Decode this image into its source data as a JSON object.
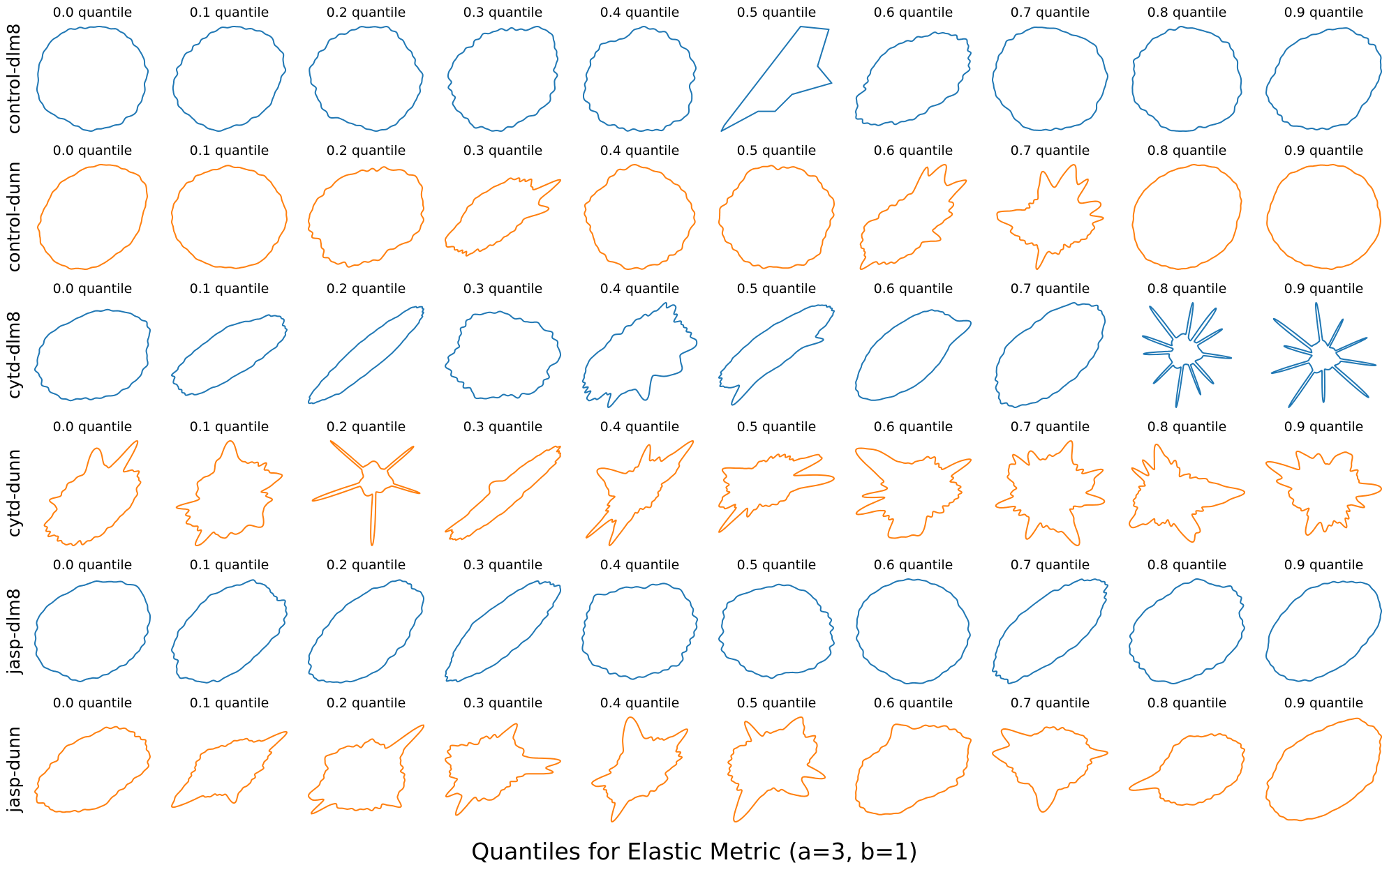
{
  "figure": {
    "title": "Quantiles for Elastic Metric (a=3, b=1)"
  },
  "chart_data": {
    "type": "grid",
    "title": "Quantiles for Elastic Metric (a=3, b=1)",
    "quantile_labels": [
      "0.0 quantile",
      "0.1 quantile",
      "0.2 quantile",
      "0.3 quantile",
      "0.4 quantile",
      "0.5 quantile",
      "0.6 quantile",
      "0.7 quantile",
      "0.8 quantile",
      "0.9 quantile"
    ],
    "quantiles": [
      0.0,
      0.1,
      0.2,
      0.3,
      0.4,
      0.5,
      0.6,
      0.7,
      0.8,
      0.9
    ],
    "colors": {
      "dlm8": "#1f77b4",
      "dunn": "#ff7f0e"
    },
    "rows": [
      {
        "label": "control-dlm8",
        "color": "#1f77b4",
        "shapes": [
          {
            "kind": "blob",
            "elong": 0.02,
            "angle": 0,
            "rough": 0.05,
            "spikes": 0
          },
          {
            "kind": "blob",
            "elong": 0.1,
            "angle": 40,
            "rough": 0.06,
            "spikes": 0
          },
          {
            "kind": "blob",
            "elong": 0.05,
            "angle": 0,
            "rough": 0.07,
            "spikes": 0
          },
          {
            "kind": "blob",
            "elong": 0.15,
            "angle": 35,
            "rough": 0.09,
            "spikes": 0
          },
          {
            "kind": "blob",
            "elong": 0.05,
            "angle": 0,
            "rough": 0.09,
            "spikes": 0
          },
          {
            "kind": "poly",
            "points": [
              [
                0.45,
                -0.9
              ],
              [
                0.95,
                -0.85
              ],
              [
                0.75,
                -0.2
              ],
              [
                1.0,
                0.1
              ],
              [
                0.3,
                0.3
              ],
              [
                0.0,
                0.6
              ],
              [
                -0.3,
                0.6
              ],
              [
                -0.95,
                0.95
              ],
              [
                -0.9,
                0.85
              ]
            ]
          },
          {
            "kind": "blob",
            "elong": 0.3,
            "angle": 35,
            "rough": 0.1,
            "spikes": 0
          },
          {
            "kind": "blob",
            "elong": 0.05,
            "angle": 0,
            "rough": 0.05,
            "spikes": 0
          },
          {
            "kind": "blob",
            "elong": 0.05,
            "angle": 0,
            "rough": 0.06,
            "spikes": 0
          },
          {
            "kind": "blob",
            "elong": 0.15,
            "angle": 30,
            "rough": 0.06,
            "spikes": 0
          }
        ]
      },
      {
        "label": "control-dunn",
        "color": "#ff7f0e",
        "shapes": [
          {
            "kind": "blob",
            "elong": 0.15,
            "angle": 40,
            "rough": 0.04,
            "spikes": 0
          },
          {
            "kind": "blob",
            "elong": 0.05,
            "angle": 0,
            "rough": 0.04,
            "spikes": 0
          },
          {
            "kind": "blob",
            "elong": 0.15,
            "angle": 30,
            "rough": 0.09,
            "spikes": 0
          },
          {
            "kind": "blob",
            "elong": 0.45,
            "angle": 40,
            "rough": 0.12,
            "spikes": 3
          },
          {
            "kind": "blob",
            "elong": 0.05,
            "angle": 0,
            "rough": 0.07,
            "spikes": 0
          },
          {
            "kind": "blob",
            "elong": 0.05,
            "angle": 0,
            "rough": 0.08,
            "spikes": 0
          },
          {
            "kind": "blob",
            "elong": 0.4,
            "angle": 35,
            "rough": 0.14,
            "spikes": 5
          },
          {
            "kind": "blob",
            "elong": 0.1,
            "angle": 10,
            "rough": 0.18,
            "spikes": 9
          },
          {
            "kind": "blob",
            "elong": 0.1,
            "angle": 40,
            "rough": 0.03,
            "spikes": 0
          },
          {
            "kind": "blob",
            "elong": 0.05,
            "angle": 0,
            "rough": 0.03,
            "spikes": 0
          }
        ]
      },
      {
        "label": "cytd-dlm8",
        "color": "#1f77b4",
        "shapes": [
          {
            "kind": "blob",
            "elong": 0.2,
            "angle": 20,
            "rough": 0.06,
            "spikes": 0
          },
          {
            "kind": "blob",
            "elong": 0.55,
            "angle": 30,
            "rough": 0.07,
            "spikes": 0
          },
          {
            "kind": "blob",
            "elong": 0.8,
            "angle": 40,
            "rough": 0.06,
            "spikes": 0
          },
          {
            "kind": "blob",
            "elong": 0.1,
            "angle": 10,
            "rough": 0.12,
            "spikes": 0
          },
          {
            "kind": "blob",
            "elong": 0.45,
            "angle": 40,
            "rough": 0.16,
            "spikes": 4
          },
          {
            "kind": "blob",
            "elong": 0.7,
            "angle": 35,
            "rough": 0.06,
            "spikes": 2
          },
          {
            "kind": "blob",
            "elong": 0.4,
            "angle": 40,
            "rough": 0.03,
            "spikes": 1
          },
          {
            "kind": "blob",
            "elong": 0.35,
            "angle": 40,
            "rough": 0.06,
            "spikes": 0
          },
          {
            "kind": "star",
            "arms": 11,
            "core": 0.35,
            "armlen": 0.95
          },
          {
            "kind": "star",
            "arms": 10,
            "core": 0.3,
            "armlen": 0.95
          }
        ]
      },
      {
        "label": "cytd-dunn",
        "color": "#ff7f0e",
        "shapes": [
          {
            "kind": "blob",
            "elong": 0.35,
            "angle": 40,
            "rough": 0.12,
            "spikes": 3
          },
          {
            "kind": "blob",
            "elong": 0.25,
            "angle": 35,
            "rough": 0.18,
            "spikes": 6
          },
          {
            "kind": "star",
            "arms": 5,
            "core": 0.3,
            "armlen": 1.0
          },
          {
            "kind": "blob",
            "elong": 0.85,
            "angle": 40,
            "rough": 0.1,
            "spikes": 2
          },
          {
            "kind": "blob",
            "elong": 0.4,
            "angle": 45,
            "rough": 0.2,
            "spikes": 7
          },
          {
            "kind": "blob",
            "elong": 0.35,
            "angle": 30,
            "rough": 0.22,
            "spikes": 9
          },
          {
            "kind": "blob",
            "elong": 0.2,
            "angle": 15,
            "rough": 0.22,
            "spikes": 9
          },
          {
            "kind": "blob",
            "elong": 0.1,
            "angle": 10,
            "rough": 0.24,
            "spikes": 11
          },
          {
            "kind": "blob",
            "elong": 0.05,
            "angle": 0,
            "rough": 0.26,
            "spikes": 13
          },
          {
            "kind": "blob",
            "elong": 0.05,
            "angle": 0,
            "rough": 0.25,
            "spikes": 12
          }
        ]
      },
      {
        "label": "jasp-dlm8",
        "color": "#1f77b4",
        "shapes": [
          {
            "kind": "blob",
            "elong": 0.15,
            "angle": 30,
            "rough": 0.05,
            "spikes": 0
          },
          {
            "kind": "blob",
            "elong": 0.3,
            "angle": 40,
            "rough": 0.07,
            "spikes": 0
          },
          {
            "kind": "blob",
            "elong": 0.4,
            "angle": 40,
            "rough": 0.07,
            "spikes": 0
          },
          {
            "kind": "blob",
            "elong": 0.6,
            "angle": 40,
            "rough": 0.07,
            "spikes": 0
          },
          {
            "kind": "blob",
            "elong": 0.1,
            "angle": 10,
            "rough": 0.09,
            "spikes": 0
          },
          {
            "kind": "blob",
            "elong": 0.1,
            "angle": 0,
            "rough": 0.08,
            "spikes": 0
          },
          {
            "kind": "blob",
            "elong": 0.05,
            "angle": 0,
            "rough": 0.04,
            "spikes": 0
          },
          {
            "kind": "blob",
            "elong": 0.5,
            "angle": 40,
            "rough": 0.07,
            "spikes": 0
          },
          {
            "kind": "blob",
            "elong": 0.2,
            "angle": 30,
            "rough": 0.07,
            "spikes": 0
          },
          {
            "kind": "blob",
            "elong": 0.25,
            "angle": 35,
            "rough": 0.04,
            "spikes": 0
          }
        ]
      },
      {
        "label": "jasp-dunn",
        "color": "#ff7f0e",
        "shapes": [
          {
            "kind": "blob",
            "elong": 0.3,
            "angle": 30,
            "rough": 0.08,
            "spikes": 0
          },
          {
            "kind": "blob",
            "elong": 0.3,
            "angle": 30,
            "rough": 0.12,
            "spikes": 4
          },
          {
            "kind": "blob",
            "elong": 0.15,
            "angle": 20,
            "rough": 0.14,
            "spikes": 5
          },
          {
            "kind": "blob",
            "elong": 0.2,
            "angle": 15,
            "rough": 0.16,
            "spikes": 6
          },
          {
            "kind": "blob",
            "elong": 0.3,
            "angle": 35,
            "rough": 0.15,
            "spikes": 5
          },
          {
            "kind": "blob",
            "elong": 0.2,
            "angle": 20,
            "rough": 0.16,
            "spikes": 6
          },
          {
            "kind": "blob",
            "elong": 0.3,
            "angle": 30,
            "rough": 0.08,
            "spikes": 1
          },
          {
            "kind": "blob",
            "elong": 0.15,
            "angle": 20,
            "rough": 0.12,
            "spikes": 4
          },
          {
            "kind": "blob",
            "elong": 0.25,
            "angle": 30,
            "rough": 0.08,
            "spikes": 1
          },
          {
            "kind": "blob",
            "elong": 0.3,
            "angle": 35,
            "rough": 0.05,
            "spikes": 0
          }
        ]
      }
    ]
  }
}
